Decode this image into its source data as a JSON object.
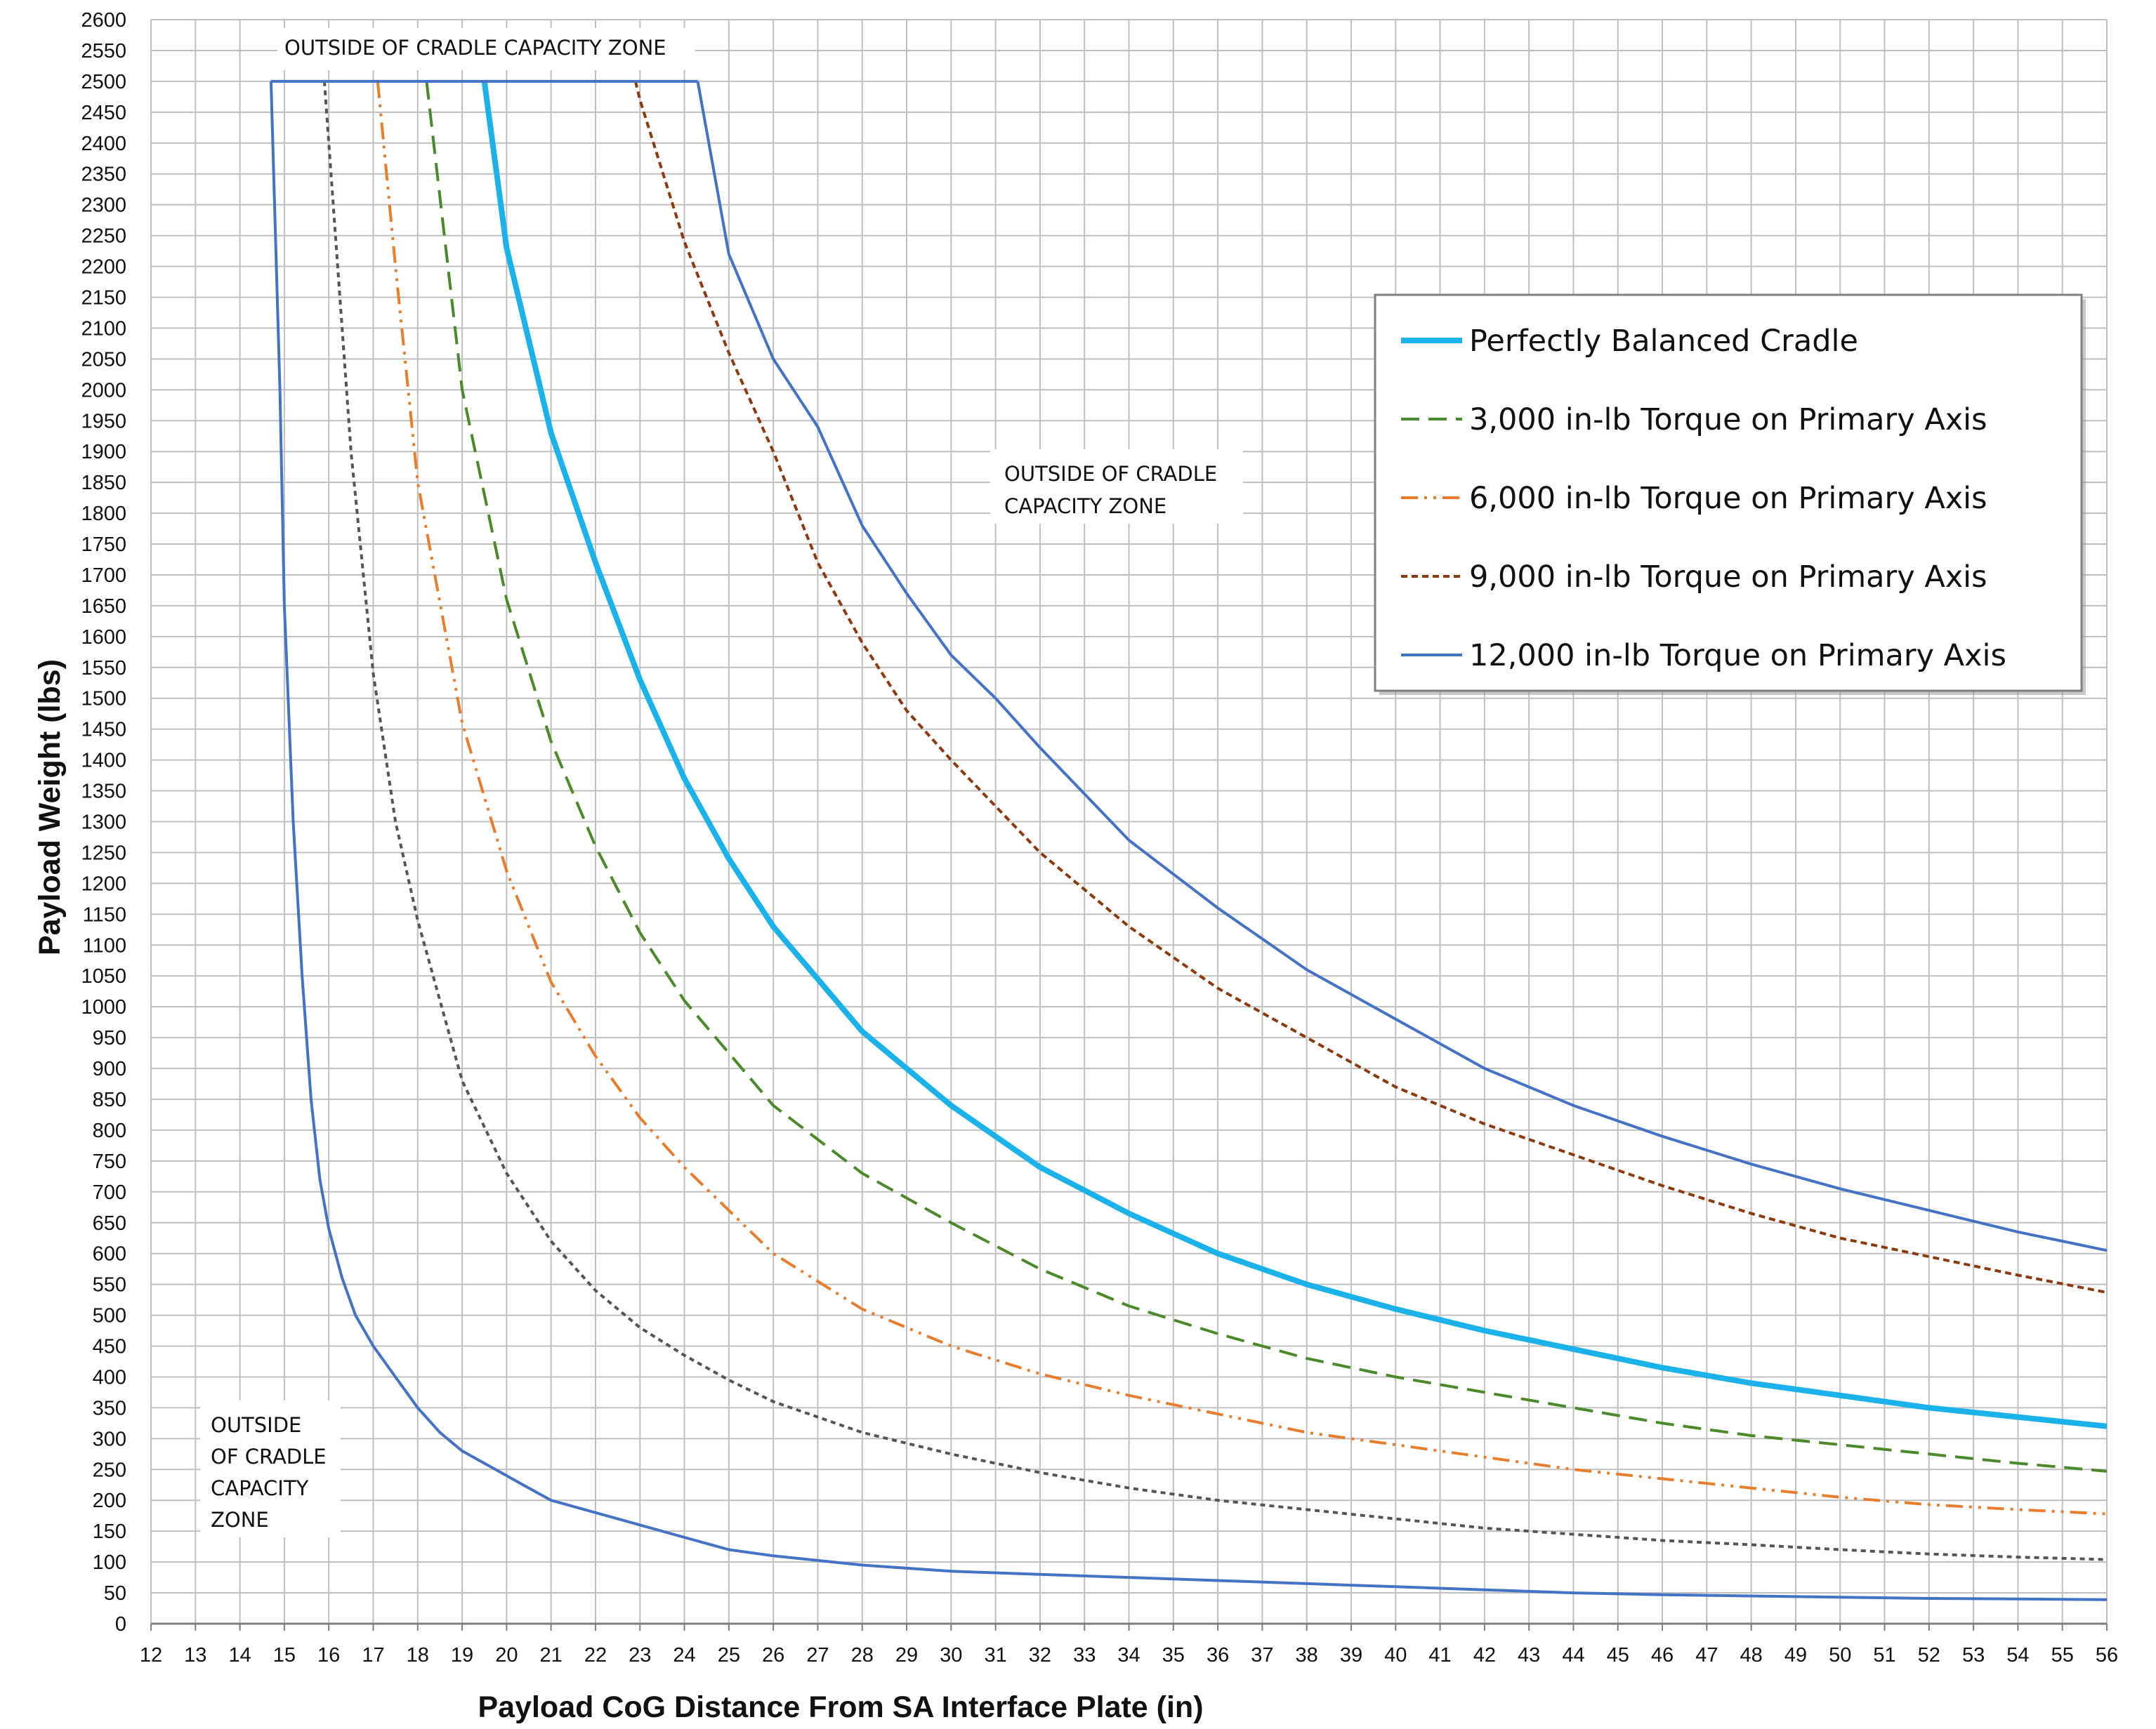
{
  "chart_data": {
    "type": "line",
    "title": "",
    "xlabel": "Payload CoG Distance From SA Interface Plate (in)",
    "ylabel": "Payload Weight (lbs)",
    "xlim": [
      12,
      56
    ],
    "ylim": [
      0,
      2600
    ],
    "x_tick_step": 1,
    "y_tick_step": 50,
    "grid": true,
    "legend_position": "top-right",
    "annotations": [
      [
        "OUTSIDE OF CRADLE CAPACITY ZONE"
      ],
      [
        "OUTSIDE OF CRADLE",
        "CAPACITY ZONE"
      ],
      [
        "OUTSIDE",
        "OF CRADLE",
        "CAPACITY",
        "ZONE"
      ]
    ],
    "series": [
      {
        "name": "Perfectly Balanced Cradle",
        "color": "#1ab2e8",
        "style": "solid-thick",
        "cap": 2500,
        "x": [
          19.5,
          20,
          21,
          22,
          23,
          24,
          25,
          26,
          28,
          30,
          32,
          34,
          36,
          38,
          40,
          42,
          44,
          46,
          48,
          50,
          52,
          54,
          56
        ],
        "y": [
          2500,
          2230,
          1930,
          1720,
          1530,
          1370,
          1240,
          1130,
          960,
          840,
          740,
          665,
          600,
          550,
          510,
          475,
          445,
          415,
          390,
          370,
          350,
          335,
          320
        ]
      },
      {
        "name": "3,000 in-lb Torque on Primary Axis",
        "color": "#4a8a2a",
        "style": "dash",
        "cap": 2500,
        "x": [
          18.2,
          19,
          20,
          21,
          22,
          23,
          24,
          26,
          28,
          30,
          32,
          34,
          36,
          38,
          40,
          42,
          44,
          46,
          48,
          50,
          52,
          54,
          56
        ],
        "y": [
          2500,
          2000,
          1660,
          1430,
          1260,
          1120,
          1010,
          840,
          730,
          650,
          575,
          515,
          470,
          430,
          400,
          375,
          350,
          325,
          305,
          290,
          275,
          260,
          247
        ]
      },
      {
        "name": "6,000 in-lb Torque on Primary Axis",
        "color": "#e87d2e",
        "style": "dashdotdot",
        "cap": 2500,
        "x": [
          17.1,
          17.5,
          18,
          19,
          20,
          21,
          22,
          23,
          24,
          26,
          28,
          30,
          32,
          34,
          36,
          38,
          40,
          42,
          44,
          46,
          48,
          50,
          52,
          54,
          56
        ],
        "y": [
          2500,
          2200,
          1850,
          1460,
          1220,
          1040,
          920,
          820,
          740,
          600,
          510,
          450,
          405,
          370,
          340,
          310,
          290,
          270,
          250,
          235,
          220,
          205,
          193,
          185,
          178
        ]
      },
      {
        "name": "9,000 in-lb Torque on Primary Axis",
        "color": "#8b3a0e",
        "style": "shortdash",
        "cap": 2500,
        "x": [
          22.9,
          23,
          24,
          25,
          26,
          27,
          28,
          29,
          30,
          32,
          34,
          36,
          38,
          40,
          42,
          44,
          46,
          48,
          50,
          52,
          54,
          56
        ],
        "y": [
          2500,
          2470,
          2240,
          2060,
          1900,
          1720,
          1590,
          1480,
          1400,
          1250,
          1130,
          1030,
          950,
          870,
          810,
          760,
          710,
          665,
          625,
          595,
          565,
          537
        ]
      },
      {
        "name": "12,000 in-lb Torque on Primary Axis",
        "color": "#4472c4",
        "style": "solid",
        "cap": 2500,
        "x": [
          24.3,
          25,
          26,
          27,
          28,
          29,
          30,
          31,
          32,
          34,
          36,
          38,
          40,
          42,
          44,
          46,
          48,
          50,
          52,
          54,
          56
        ],
        "y": [
          2500,
          2220,
          2050,
          1940,
          1780,
          1670,
          1570,
          1500,
          1420,
          1270,
          1160,
          1060,
          980,
          900,
          840,
          790,
          745,
          705,
          670,
          635,
          605
        ]
      },
      {
        "name": "",
        "color": "#555555",
        "style": "dot",
        "cap": 2500,
        "x": [
          15.9,
          16,
          16.5,
          17,
          17.5,
          18,
          19,
          20,
          21,
          22,
          23,
          24,
          25,
          26,
          28,
          30,
          32,
          34,
          36,
          38,
          40,
          42,
          44,
          46,
          48,
          50,
          52,
          54,
          56
        ],
        "y": [
          2500,
          2400,
          1900,
          1540,
          1300,
          1140,
          880,
          730,
          620,
          540,
          480,
          435,
          395,
          360,
          310,
          275,
          245,
          220,
          200,
          185,
          170,
          155,
          145,
          135,
          128,
          120,
          113,
          108,
          104
        ]
      },
      {
        "name": "",
        "color": "#4472c4",
        "style": "solid",
        "cap": 2500,
        "x": [
          14.7,
          14.9,
          15,
          15.2,
          15.4,
          15.6,
          15.8,
          16,
          16.3,
          16.6,
          17,
          17.5,
          18,
          18.5,
          19,
          19.5,
          20,
          20.5,
          21,
          22,
          23,
          24,
          25,
          26,
          28,
          30,
          32,
          34,
          36,
          38,
          40,
          42,
          44,
          46,
          48,
          50,
          52,
          54,
          56
        ],
        "y": [
          2500,
          2000,
          1650,
          1300,
          1050,
          850,
          720,
          640,
          560,
          500,
          450,
          400,
          350,
          310,
          280,
          260,
          240,
          220,
          200,
          180,
          160,
          140,
          120,
          110,
          95,
          85,
          80,
          75,
          70,
          65,
          60,
          55,
          50,
          47,
          45,
          43,
          41,
          40,
          39
        ]
      }
    ]
  }
}
